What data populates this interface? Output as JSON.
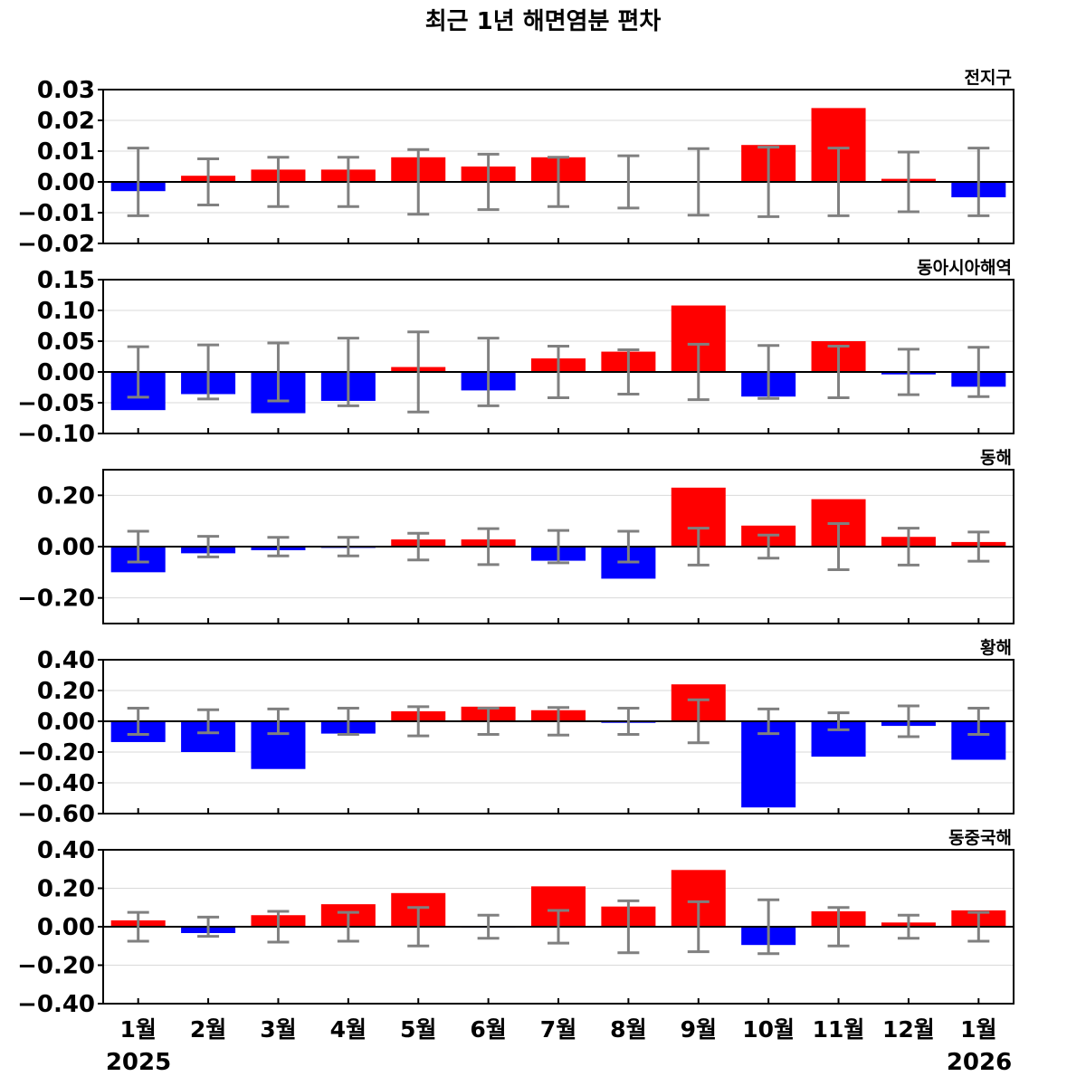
{
  "title": "최근 1년 해면염분 편차",
  "x_tick_labels": [
    "1월",
    "2월",
    "3월",
    "4월",
    "5월",
    "6월",
    "7월",
    "8월",
    "9월",
    "10월",
    "11월",
    "12월",
    "1월"
  ],
  "year_labels": {
    "start": "2025",
    "end": "2026"
  },
  "colors": {
    "positive": "#ff0000",
    "negative": "#0000ff",
    "error_bar": "#808080",
    "zero_line": "#000000",
    "grid": "#d9d9d9"
  },
  "chart_data": [
    {
      "type": "bar",
      "title": "전지구",
      "categories": [
        "1월",
        "2월",
        "3월",
        "4월",
        "5월",
        "6월",
        "7월",
        "8월",
        "9월",
        "10월",
        "11월",
        "12월",
        "1월"
      ],
      "values": [
        -0.003,
        0.002,
        0.004,
        0.004,
        0.008,
        0.005,
        0.008,
        0.0,
        0.0,
        0.012,
        0.024,
        0.001,
        -0.005
      ],
      "error_range": [
        0.011,
        0.0075,
        0.008,
        0.008,
        0.0105,
        0.009,
        0.008,
        0.0085,
        0.0108,
        0.0113,
        0.011,
        0.0097,
        0.011
      ],
      "ylim": [
        -0.02,
        0.03
      ],
      "yticks": [
        -0.02,
        -0.01,
        0.0,
        0.01,
        0.02,
        0.03
      ],
      "ytick_labels": [
        "−0.02",
        "−0.01",
        "0.00",
        "0.01",
        "0.02",
        "0.03"
      ],
      "grid": true
    },
    {
      "type": "bar",
      "title": "동아시아해역",
      "categories": [
        "1월",
        "2월",
        "3월",
        "4월",
        "5월",
        "6월",
        "7월",
        "8월",
        "9월",
        "10월",
        "11월",
        "12월",
        "1월"
      ],
      "values": [
        -0.062,
        -0.036,
        -0.067,
        -0.047,
        0.008,
        -0.03,
        0.022,
        0.033,
        0.108,
        -0.04,
        0.05,
        -0.004,
        -0.024
      ],
      "error_range": [
        0.041,
        0.044,
        0.047,
        0.055,
        0.065,
        0.055,
        0.042,
        0.036,
        0.045,
        0.043,
        0.042,
        0.037,
        0.04
      ],
      "ylim": [
        -0.1,
        0.15
      ],
      "yticks": [
        -0.1,
        -0.05,
        0.0,
        0.05,
        0.1,
        0.15
      ],
      "ytick_labels": [
        "−0.10",
        "−0.05",
        "0.00",
        "0.05",
        "0.10",
        "0.15"
      ],
      "grid": true
    },
    {
      "type": "bar",
      "title": "동해",
      "categories": [
        "1월",
        "2월",
        "3월",
        "4월",
        "5월",
        "6월",
        "7월",
        "8월",
        "9월",
        "10월",
        "11월",
        "12월",
        "1월"
      ],
      "values": [
        -0.1,
        -0.026,
        -0.014,
        -0.005,
        0.028,
        0.028,
        -0.055,
        -0.125,
        0.23,
        0.082,
        0.185,
        0.038,
        0.018
      ],
      "error_range": [
        0.06,
        0.04,
        0.036,
        0.036,
        0.052,
        0.07,
        0.063,
        0.06,
        0.072,
        0.045,
        0.09,
        0.072,
        0.057
      ],
      "ylim": [
        -0.3,
        0.3
      ],
      "yticks": [
        -0.2,
        0.0,
        0.2
      ],
      "ytick_labels": [
        "−0.20",
        "0.00",
        "0.20"
      ],
      "grid": true
    },
    {
      "type": "bar",
      "title": "황해",
      "categories": [
        "1월",
        "2월",
        "3월",
        "4월",
        "5월",
        "6월",
        "7월",
        "8월",
        "9월",
        "10월",
        "11월",
        "12월",
        "1월"
      ],
      "values": [
        -0.135,
        -0.2,
        -0.31,
        -0.08,
        0.065,
        0.095,
        0.072,
        -0.01,
        0.24,
        -0.56,
        -0.23,
        -0.03,
        -0.25
      ],
      "error_range": [
        0.085,
        0.075,
        0.08,
        0.085,
        0.095,
        0.085,
        0.09,
        0.085,
        0.14,
        0.08,
        0.055,
        0.1,
        0.085
      ],
      "ylim": [
        -0.6,
        0.4
      ],
      "yticks": [
        -0.6,
        -0.4,
        -0.2,
        0.0,
        0.2,
        0.4
      ],
      "ytick_labels": [
        "−0.60",
        "−0.40",
        "−0.20",
        "0.00",
        "0.20",
        "0.40"
      ],
      "grid": true
    },
    {
      "type": "bar",
      "title": "동중국해",
      "categories": [
        "1월",
        "2월",
        "3월",
        "4월",
        "5월",
        "6월",
        "7월",
        "8월",
        "9월",
        "10월",
        "11월",
        "12월",
        "1월"
      ],
      "values": [
        0.033,
        -0.033,
        0.06,
        0.117,
        0.175,
        -0.005,
        0.21,
        0.105,
        0.295,
        -0.095,
        0.08,
        0.022,
        0.085
      ],
      "error_range": [
        0.075,
        0.05,
        0.08,
        0.075,
        0.1,
        0.06,
        0.085,
        0.135,
        0.13,
        0.14,
        0.1,
        0.06,
        0.075
      ],
      "ylim": [
        -0.4,
        0.4
      ],
      "yticks": [
        -0.4,
        -0.2,
        0.0,
        0.2,
        0.4
      ],
      "ytick_labels": [
        "−0.40",
        "−0.20",
        "0.00",
        "0.20",
        "0.40"
      ],
      "grid": true
    }
  ]
}
